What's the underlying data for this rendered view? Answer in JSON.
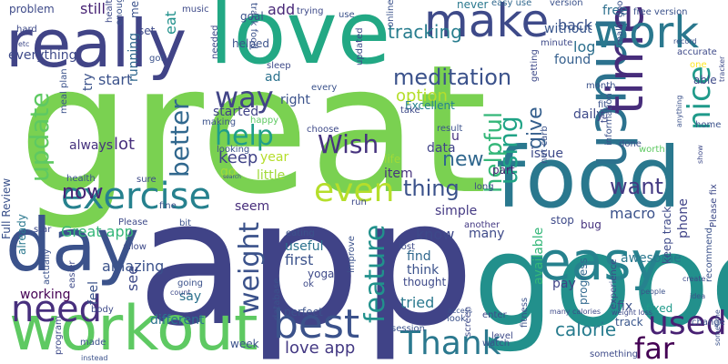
{
  "words": [
    {
      "text": "app",
      "color": "#404387"
    },
    {
      "text": "great",
      "color": "#7ad151"
    },
    {
      "text": "good",
      "color": "#22908c"
    },
    {
      "text": "love",
      "color": "#22a884"
    },
    {
      "text": "food",
      "color": "#2a788e"
    },
    {
      "text": "really",
      "color": "#414487"
    },
    {
      "text": "make",
      "color": "#3e4a89"
    },
    {
      "text": "day",
      "color": "#3b528b"
    },
    {
      "text": "workout",
      "color": "#5ec962"
    },
    {
      "text": "much",
      "color": "#2c728e"
    },
    {
      "text": "easy",
      "color": "#26828e"
    },
    {
      "text": "time",
      "color": "#472d7b"
    },
    {
      "text": "work",
      "color": "#2a788e"
    },
    {
      "text": "exercise",
      "color": "#26818e"
    },
    {
      "text": "best",
      "color": "#3b528b"
    },
    {
      "text": "need",
      "color": "#472f7d"
    },
    {
      "text": "Thank",
      "color": "#2a788e"
    },
    {
      "text": "even",
      "color": "#b5de2b"
    },
    {
      "text": "weight",
      "color": "#3b528b"
    },
    {
      "text": "feature",
      "color": "#21918c"
    },
    {
      "text": "used",
      "color": "#482173"
    },
    {
      "text": "far",
      "color": "#440154"
    },
    {
      "text": "way",
      "color": "#414487"
    },
    {
      "text": "help",
      "color": "#1f9e89"
    },
    {
      "text": "meditation",
      "color": "#3b528b"
    },
    {
      "text": "update",
      "color": "#5ec962"
    },
    {
      "text": "better",
      "color": "#31688e"
    },
    {
      "text": "using",
      "color": "#20a386"
    },
    {
      "text": "helpful",
      "color": "#35b779"
    },
    {
      "text": "Wish",
      "color": "#46337e"
    },
    {
      "text": "nice",
      "color": "#1f9a8a"
    },
    {
      "text": "give",
      "color": "#355f8d"
    },
    {
      "text": "thing",
      "color": "#3b528b"
    },
    {
      "text": "want",
      "color": "#443a83"
    },
    {
      "text": "keep",
      "color": "#404387"
    },
    {
      "text": "now",
      "color": "#482475"
    },
    {
      "text": "Great app",
      "color": "#35b779"
    },
    {
      "text": "love app",
      "color": "#443983"
    },
    {
      "text": "calorie",
      "color": "#287c8e"
    },
    {
      "text": "first",
      "color": "#3b528b"
    },
    {
      "text": "know",
      "color": "#3e4989"
    },
    {
      "text": "new",
      "color": "#31688e"
    },
    {
      "text": "amazing",
      "color": "#3b528b"
    },
    {
      "text": "tracking",
      "color": "#287d8e"
    },
    {
      "text": "option",
      "color": "#b5de2b"
    },
    {
      "text": "add",
      "color": "#482878"
    },
    {
      "text": "back",
      "color": "#3b528b"
    },
    {
      "text": "still",
      "color": "#482475"
    },
    {
      "text": "eat",
      "color": "#21918c"
    },
    {
      "text": "start",
      "color": "#3b528b"
    },
    {
      "text": "better",
      "color": "#31688e"
    },
    {
      "text": "lot",
      "color": "#472f7d"
    },
    {
      "text": "year",
      "color": "#b5de2b"
    },
    {
      "text": "data",
      "color": "#404387"
    },
    {
      "text": "u",
      "color": "#46327e"
    },
    {
      "text": "always",
      "color": "#46337e"
    },
    {
      "text": "log",
      "color": "#2d708e"
    },
    {
      "text": "found",
      "color": "#355f8d"
    },
    {
      "text": "daily",
      "color": "#3e4a89"
    },
    {
      "text": "without",
      "color": "#39568c"
    },
    {
      "text": "free",
      "color": "#2d708e"
    },
    {
      "text": "started",
      "color": "#404387"
    },
    {
      "text": "ad",
      "color": "#2c728e"
    },
    {
      "text": "right",
      "color": "#3b528b"
    },
    {
      "text": "Excellent",
      "color": "#26828e"
    },
    {
      "text": "running",
      "color": "#31688e"
    },
    {
      "text": "everything",
      "color": "#3e4a89"
    },
    {
      "text": "try",
      "color": "#3b528b"
    },
    {
      "text": "problem",
      "color": "#3e4a89"
    },
    {
      "text": "meal",
      "color": "#3b528b"
    },
    {
      "text": "set",
      "color": "#3e4a89"
    },
    {
      "text": "go",
      "color": "#a0da39"
    },
    {
      "text": "seem",
      "color": "#472d7b"
    },
    {
      "text": "little",
      "color": "#a0da39"
    },
    {
      "text": "item",
      "color": "#46337e"
    },
    {
      "text": "simple",
      "color": "#443983"
    },
    {
      "text": "life",
      "color": "#a0da39"
    },
    {
      "text": "issue",
      "color": "#3e4a89"
    },
    {
      "text": "part",
      "color": "#481f70"
    },
    {
      "text": "macro",
      "color": "#3b528b"
    },
    {
      "text": "awesome",
      "color": "#2a788e"
    },
    {
      "text": "available",
      "color": "#35b779"
    },
    {
      "text": "track",
      "color": "#39568c"
    },
    {
      "text": "phone",
      "color": "#404387"
    },
    {
      "text": "stop",
      "color": "#3e4a89"
    },
    {
      "text": "bug",
      "color": "#46337e"
    },
    {
      "text": "pay",
      "color": "#404387"
    },
    {
      "text": "fix",
      "color": "#3b528b"
    },
    {
      "text": "fixed",
      "color": "#1f9a8a"
    },
    {
      "text": "progress",
      "color": "#31688e"
    },
    {
      "text": "see",
      "color": "#3e4a89"
    },
    {
      "text": "say",
      "color": "#2c728e"
    },
    {
      "text": "feel",
      "color": "#3b528b"
    },
    {
      "text": "different",
      "color": "#2c728e"
    },
    {
      "text": "working",
      "color": "#440154"
    },
    {
      "text": "week",
      "color": "#3b528b"
    },
    {
      "text": "perfect",
      "color": "#3b528b"
    },
    {
      "text": "useful",
      "color": "#2c728e"
    },
    {
      "text": "yoga",
      "color": "#3e4a89"
    },
    {
      "text": "eating",
      "color": "#3b528b"
    },
    {
      "text": "ok",
      "color": "#3e4a89"
    },
    {
      "text": "tried",
      "color": "#2a788e"
    },
    {
      "text": "think",
      "color": "#3b528b"
    },
    {
      "text": "find",
      "color": "#31688e"
    },
    {
      "text": "thought",
      "color": "#3e4a89"
    },
    {
      "text": "many",
      "color": "#3e4a89"
    },
    {
      "text": "another",
      "color": "#443983"
    },
    {
      "text": "already",
      "color": "#2a788e"
    },
    {
      "text": "health",
      "color": "#3b528b"
    },
    {
      "text": "Please",
      "color": "#3e4a89"
    },
    {
      "text": "fine",
      "color": "#3b528b"
    },
    {
      "text": "Full Review",
      "color": "#3b528b"
    },
    {
      "text": "sure",
      "color": "#3e4a89"
    },
    {
      "text": "bit",
      "color": "#3b528b"
    },
    {
      "text": "always",
      "color": "#46337e"
    },
    {
      "text": "music",
      "color": "#3e4a89"
    },
    {
      "text": "goal",
      "color": "#3b528b"
    },
    {
      "text": "never",
      "color": "#2a788e"
    },
    {
      "text": "easy use",
      "color": "#31688e"
    },
    {
      "text": "version",
      "color": "#3b528b"
    },
    {
      "text": "sleep",
      "color": "#3e4a89"
    },
    {
      "text": "every",
      "color": "#3b528b"
    },
    {
      "text": "choose",
      "color": "#3e4a89"
    },
    {
      "text": "make",
      "color": "#3e4a89"
    },
    {
      "text": "looking",
      "color": "#3b528b"
    },
    {
      "text": "happy",
      "color": "#5ec962"
    },
    {
      "text": "helped",
      "color": "#3b528b"
    },
    {
      "text": "take",
      "color": "#3e4a89"
    },
    {
      "text": "result",
      "color": "#3b528b"
    },
    {
      "text": "month",
      "color": "#3b528b"
    },
    {
      "text": "minute",
      "color": "#3e4a89"
    },
    {
      "text": "done",
      "color": "#3b528b"
    },
    {
      "text": "run",
      "color": "#3e4a89"
    },
    {
      "text": "improve",
      "color": "#3b528b"
    },
    {
      "text": "lost",
      "color": "#3e4a89"
    },
    {
      "text": "session",
      "color": "#3b528b"
    },
    {
      "text": "level",
      "color": "#3e4a89"
    },
    {
      "text": "watch",
      "color": "#3b528b"
    },
    {
      "text": "enter",
      "color": "#3e4a89"
    },
    {
      "text": "look",
      "color": "#3b528b"
    },
    {
      "text": "long",
      "color": "#3e4a89"
    },
    {
      "text": "net carb",
      "color": "#3b528b"
    },
    {
      "text": "worth",
      "color": "#5ec962"
    },
    {
      "text": "keep track",
      "color": "#3e4a89"
    },
    {
      "text": "information",
      "color": "#3b528b"
    },
    {
      "text": "experience",
      "color": "#3e4a89"
    },
    {
      "text": "food",
      "color": "#2a788e"
    },
    {
      "text": "fitness",
      "color": "#3b528b"
    },
    {
      "text": "screen",
      "color": "#3e4a89"
    },
    {
      "text": "change",
      "color": "#3b528b"
    },
    {
      "text": "something",
      "color": "#3e4a89"
    },
    {
      "text": "recommend",
      "color": "#3b528b"
    },
    {
      "text": "Please fix",
      "color": "#3e4a89"
    },
    {
      "text": "ability",
      "color": "#3b528b"
    },
    {
      "text": "able",
      "color": "#3e4a89"
    },
    {
      "text": "home",
      "color": "#3b528b"
    },
    {
      "text": "one",
      "color": "#fde725"
    },
    {
      "text": "free version",
      "color": "#3b528b"
    },
    {
      "text": "accurate",
      "color": "#3e4a89"
    },
    {
      "text": "use",
      "color": "#3b528b"
    },
    {
      "text": "trying",
      "color": "#3e4a89"
    },
    {
      "text": "track food",
      "color": "#3b528b"
    },
    {
      "text": "healthy",
      "color": "#3e4a89"
    },
    {
      "text": "enough",
      "color": "#3b528b"
    },
    {
      "text": "hard",
      "color": "#3e4a89"
    },
    {
      "text": "meal plan",
      "color": "#3b528b"
    },
    {
      "text": "etc",
      "color": "#3e4a89"
    },
    {
      "text": "got",
      "color": "#3b528b"
    },
    {
      "text": "needed",
      "color": "#3e4a89"
    },
    {
      "text": "making",
      "color": "#3b528b"
    },
    {
      "text": "updated",
      "color": "#3e4a89"
    },
    {
      "text": "online",
      "color": "#3b528b"
    },
    {
      "text": "getting",
      "color": "#3e4a89"
    },
    {
      "text": "fit",
      "color": "#3b528b"
    },
    {
      "text": "tell",
      "color": "#3e4a89"
    },
    {
      "text": "really good",
      "color": "#3b528b"
    },
    {
      "text": "allow",
      "color": "#3e4a89"
    },
    {
      "text": "going",
      "color": "#3b528b"
    },
    {
      "text": "count",
      "color": "#3e4a89"
    },
    {
      "text": "database",
      "color": "#3b528b"
    },
    {
      "text": "body",
      "color": "#3e4a89"
    },
    {
      "text": "made",
      "color": "#3b528b"
    },
    {
      "text": "easier",
      "color": "#3e4a89"
    },
    {
      "text": "actually",
      "color": "#3b528b"
    },
    {
      "text": "program",
      "color": "#3e4a89"
    },
    {
      "text": "instead",
      "color": "#3b528b"
    },
    {
      "text": "star",
      "color": "#3e4a89"
    },
    {
      "text": "access",
      "color": "#3b528b"
    },
    {
      "text": "many calories",
      "color": "#3e4a89"
    },
    {
      "text": "people",
      "color": "#3b528b"
    },
    {
      "text": "weight loss",
      "color": "#3e4a89"
    },
    {
      "text": "idea",
      "color": "#3b528b"
    },
    {
      "text": "create",
      "color": "#3e4a89"
    },
    {
      "text": "sometime",
      "color": "#3b528b"
    },
    {
      "text": "show",
      "color": "#3e4a89"
    },
    {
      "text": "anything",
      "color": "#3b528b"
    },
    {
      "text": "far",
      "color": "#3e4a89"
    },
    {
      "text": "record",
      "color": "#3b528b"
    },
    {
      "text": "tracker",
      "color": "#3e4a89"
    },
    {
      "text": "search",
      "color": "#3b528b"
    }
  ]
}
